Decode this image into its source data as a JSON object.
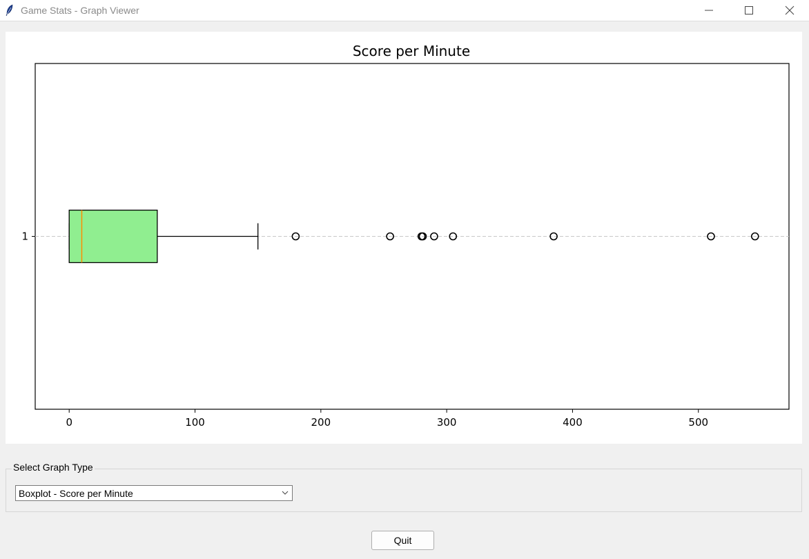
{
  "window": {
    "title": "Game Stats - Graph Viewer",
    "icon": "feather-icon"
  },
  "controls": {
    "minimize": "minimize-icon",
    "maximize": "maximize-icon",
    "close": "close-icon"
  },
  "selector": {
    "group_label": "Select Graph Type",
    "selected_value": "Boxplot - Score per Minute"
  },
  "quit_label": "Quit",
  "chart_data": {
    "type": "boxplot",
    "orientation": "horizontal",
    "title": "Score per Minute",
    "xlabel": "",
    "ylabel": "",
    "xlim": [
      -27,
      572
    ],
    "xticks": [
      0,
      100,
      200,
      300,
      400,
      500
    ],
    "yticks": [
      "1"
    ],
    "grid": "y-dashed",
    "box_color": "#90ee90",
    "median_color": "#ff8c00",
    "boxes": [
      {
        "label": "1",
        "whislo": 0,
        "q1": 0,
        "median": 10,
        "q3": 70,
        "whishi": 150,
        "fliers": [
          180,
          255,
          280,
          281,
          290,
          305,
          385,
          510,
          545
        ]
      }
    ]
  }
}
